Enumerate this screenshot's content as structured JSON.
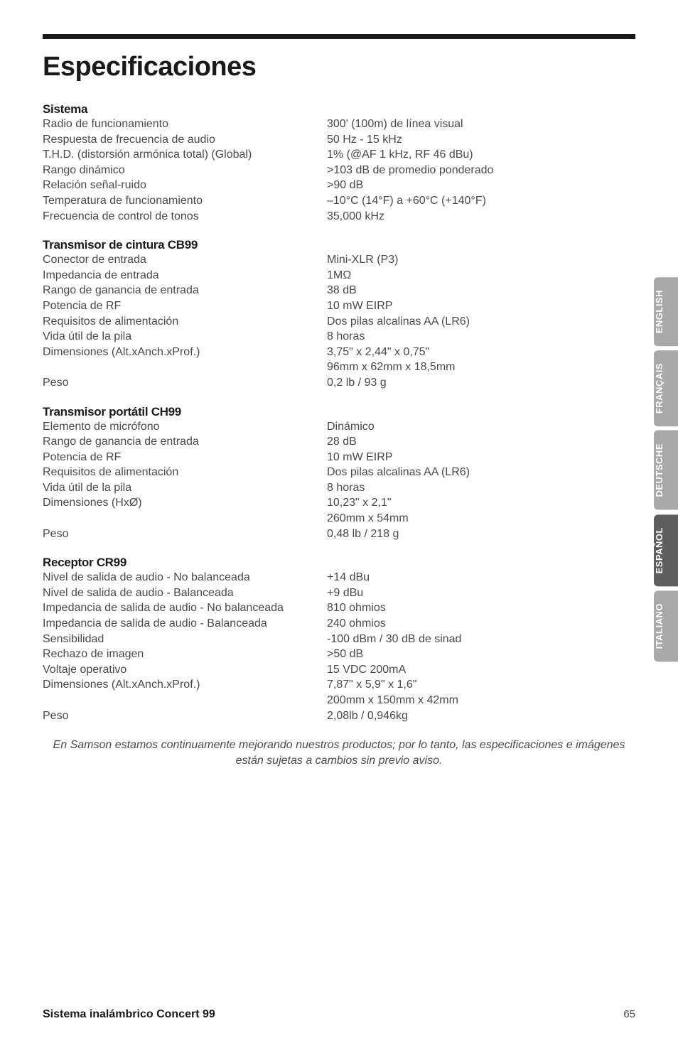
{
  "colors": {
    "rule": "#1a1a1a",
    "heading": "#1a1a1a",
    "body": "#4a4a4a",
    "tab_inactive_bg": "#a9a9a9",
    "tab_active_bg": "#5e5e5e",
    "tab_text": "#ffffff",
    "page_bg": "#ffffff"
  },
  "typography": {
    "title_pt": 38,
    "heading_pt": 17,
    "body_pt": 16,
    "tab_pt": 13,
    "footer_title_pt": 16,
    "footer_page_pt": 15
  },
  "title": "Especificaciones",
  "sections": [
    {
      "heading": "Sistema",
      "rows": [
        {
          "label": "Radio de funcionamiento",
          "value": "300' (100m) de línea visual"
        },
        {
          "label": "Respuesta de frecuencia de audio",
          "value": "50 Hz - 15 kHz"
        },
        {
          "label": "T.H.D. (distorsión armónica total) (Global)",
          "value": "1% (@AF 1 kHz, RF 46 dBu)"
        },
        {
          "label": "Rango dinámico",
          "value": ">103 dB de promedio ponderado"
        },
        {
          "label": "Relación señal-ruido",
          "value": ">90 dB"
        },
        {
          "label": "Temperatura de funcionamiento",
          "value": "–10°C (14°F) a +60°C (+140°F)"
        },
        {
          "label": "Frecuencia de control de tonos",
          "value": "35,000 kHz"
        }
      ]
    },
    {
      "heading": "Transmisor de cintura CB99",
      "rows": [
        {
          "label": "Conector de entrada",
          "value": "Mini-XLR (P3)"
        },
        {
          "label": "Impedancia de entrada",
          "value": "1MΩ"
        },
        {
          "label": "Rango de ganancia de entrada",
          "value": "38 dB"
        },
        {
          "label": "Potencia de RF",
          "value": "10 mW EIRP"
        },
        {
          "label": "Requisitos de alimentación",
          "value": "Dos pilas alcalinas AA (LR6)"
        },
        {
          "label": "Vida útil de la pila",
          "value": "8 horas"
        },
        {
          "label": "Dimensiones (Alt.xAnch.xProf.)",
          "value": "3,75\" x 2,44\" x 0,75\""
        },
        {
          "label": "",
          "value": "96mm x 62mm x 18,5mm"
        },
        {
          "label": "Peso",
          "value": "0,2 lb / 93 g"
        }
      ]
    },
    {
      "heading": "Transmisor portátil CH99",
      "rows": [
        {
          "label": "Elemento de micrófono",
          "value": "Dinámico"
        },
        {
          "label": "Rango de ganancia de entrada",
          "value": "28 dB"
        },
        {
          "label": "Potencia de RF",
          "value": "10 mW EIRP"
        },
        {
          "label": "Requisitos de alimentación",
          "value": "Dos pilas alcalinas AA (LR6)"
        },
        {
          "label": "Vida útil de la pila",
          "value": "8 horas"
        },
        {
          "label": "Dimensiones (HxØ)",
          "value": "10,23\" x 2,1\""
        },
        {
          "label": "",
          "value": "260mm x 54mm"
        },
        {
          "label": "Peso",
          "value": "0,48 lb / 218 g"
        }
      ]
    },
    {
      "heading": "Receptor CR99",
      "rows": [
        {
          "label": "Nivel de salida de audio - No balanceada",
          "value": "+14 dBu"
        },
        {
          "label": "Nivel de salida de audio - Balanceada",
          "value": "+9 dBu"
        },
        {
          "label": "Impedancia de salida de audio - No balanceada",
          "value": "810 ohmios"
        },
        {
          "label": "Impedancia de salida de audio - Balanceada",
          "value": "240 ohmios"
        },
        {
          "label": "Sensibilidad",
          "value": "-100 dBm / 30 dB de sinad"
        },
        {
          "label": "Rechazo de imagen",
          "value": ">50 dB"
        },
        {
          "label": "Voltaje operativo",
          "value": "15 VDC 200mA"
        },
        {
          "label": "Dimensiones (Alt.xAnch.xProf.)",
          "value": "7,87\" x 5,9\" x 1,6\""
        },
        {
          "label": "",
          "value": "200mm x 150mm x 42mm"
        },
        {
          "label": "Peso",
          "value": "2,08lb / 0,946kg"
        }
      ]
    }
  ],
  "footnote": "En Samson estamos continuamente mejorando nuestros productos; por lo tanto, las especificaciones e imágenes están sujetas a cambios sin previo aviso.",
  "tabs": [
    {
      "label": "ENGLISH",
      "active": false
    },
    {
      "label": "FRANÇAIS",
      "active": false
    },
    {
      "label": "DEUTSCHE",
      "active": false
    },
    {
      "label": "ESPAÑOL",
      "active": true
    },
    {
      "label": "ITALIANO",
      "active": false
    }
  ],
  "footer": {
    "title": "Sistema inalámbrico Concert 99",
    "page": "65"
  }
}
